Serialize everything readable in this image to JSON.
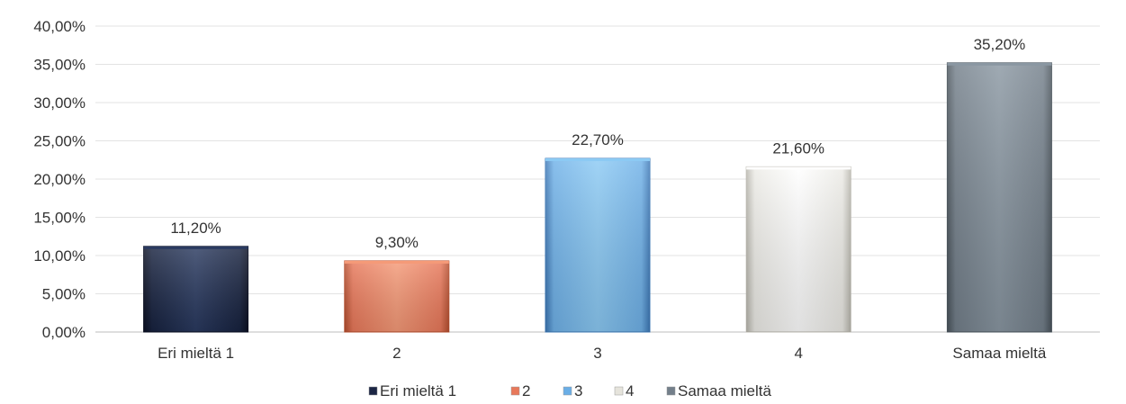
{
  "chart_data": {
    "type": "bar",
    "title": "",
    "xlabel": "",
    "ylabel": "",
    "categories": [
      "Eri mieltä 1",
      "2",
      "3",
      "4",
      "Samaa mieltä"
    ],
    "values": [
      11.2,
      9.3,
      22.7,
      21.6,
      35.2
    ],
    "value_labels": [
      "11,20%",
      "9,30%",
      "22,70%",
      "21,60%",
      "35,20%"
    ],
    "ylim": [
      0,
      40
    ],
    "y_ticks": [
      0,
      5,
      10,
      15,
      20,
      25,
      30,
      35,
      40
    ],
    "y_tick_labels": [
      "0,00%",
      "5,00%",
      "10,00%",
      "15,00%",
      "20,00%",
      "25,00%",
      "30,00%",
      "35,00%",
      "40,00%"
    ],
    "grid": true,
    "legend_position": "bottom",
    "legend": [
      "Eri mieltä 1",
      "2",
      "3",
      "4",
      "Samaa mieltä"
    ],
    "colors": [
      {
        "top": "#2a3a60",
        "mid": "#17223f",
        "bottom": "#0c1430",
        "edge": "#0a0f22"
      },
      {
        "top": "#f59a78",
        "mid": "#e8785a",
        "bottom": "#d8663f",
        "edge": "#b54e2e"
      },
      {
        "top": "#8ccaf4",
        "mid": "#6fb1e8",
        "bottom": "#5a96d2",
        "edge": "#3d78b6"
      },
      {
        "top": "#ffffff",
        "mid": "#ecebe6",
        "bottom": "#dcdad2",
        "edge": "#b9b7ae"
      },
      {
        "top": "#8a97a2",
        "mid": "#737f8a",
        "bottom": "#5c6871",
        "edge": "#4a545c"
      }
    ],
    "legend_swatch_colors": [
      "#1b2544",
      "#e8785a",
      "#6aaee6",
      "#e6e4dc",
      "#737f8a"
    ]
  }
}
